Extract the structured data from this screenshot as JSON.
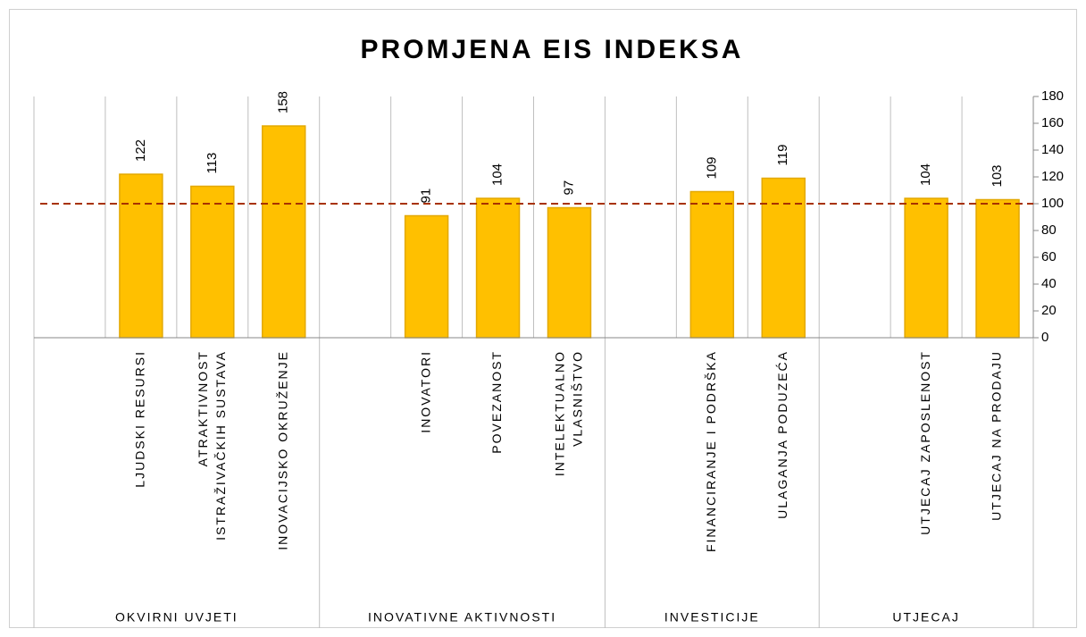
{
  "chart_data": {
    "type": "bar",
    "title": "PROMJENA EIS INDEKSA",
    "color": "#ffc000",
    "groups": [
      {
        "name": "OKVIRNI UVJETI",
        "categories": [
          null,
          "LJUDSKI RESURSI",
          "ATRAKTIVNOST\nISTRAŽIVAČKIH SUSTAVA",
          "INOVACIJSKO OKRUŽENJE"
        ],
        "values": [
          null,
          122,
          113,
          158
        ]
      },
      {
        "name": "INOVATIVNE AKTIVNOSTI",
        "categories": [
          null,
          "INOVATORI",
          "POVEZANOST",
          "INTELEKTUALNO\nVLASNIŠTVO"
        ],
        "values": [
          null,
          91,
          104,
          97
        ]
      },
      {
        "name": "INVESTICIJE",
        "categories": [
          null,
          "FINANCIRANJE I PODRŠKA",
          "ULAGANJA PODUZEĆA"
        ],
        "values": [
          null,
          109,
          119
        ]
      },
      {
        "name": "UTJECAJ",
        "categories": [
          null,
          "UTJECAJ ZAPOSLENOST",
          "UTJECAJ NA PRODAJU"
        ],
        "values": [
          null,
          104,
          103
        ]
      }
    ],
    "reference_line": {
      "value": 100,
      "color": "#a83200"
    },
    "ylim": [
      0,
      180
    ],
    "yticks": [
      0,
      20,
      40,
      60,
      80,
      100,
      120,
      140,
      160,
      180
    ],
    "y_axis_side": "right",
    "grid": true
  }
}
